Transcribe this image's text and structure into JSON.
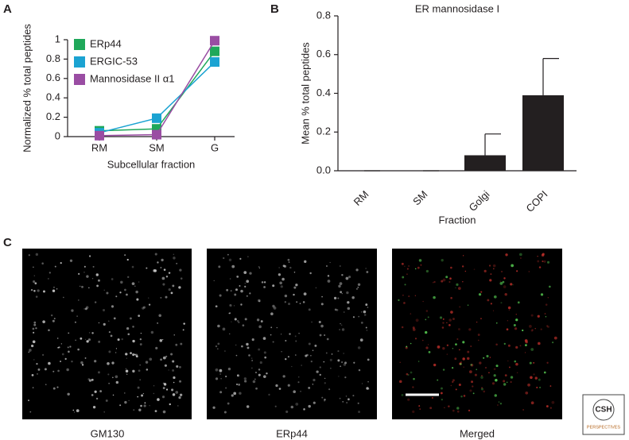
{
  "chart_data": [
    {
      "type": "line",
      "panel_label": "A",
      "xlabel": "Subcellular fraction",
      "ylabel": "Normalized % total peptides",
      "categories": [
        "RM",
        "SM",
        "G"
      ],
      "series": [
        {
          "name": "ERp44",
          "color": "#1fa85a",
          "values": [
            0.06,
            0.08,
            0.88
          ]
        },
        {
          "name": "ERGIC-53",
          "color": "#1ba3d2",
          "values": [
            0.04,
            0.19,
            0.77
          ]
        },
        {
          "name": "Mannosidase II α1",
          "color": "#9a4da3",
          "values": [
            0.01,
            0.02,
            0.99
          ]
        }
      ],
      "ylim": [
        0,
        1
      ],
      "yticks": [
        0,
        0.2,
        0.4,
        0.6,
        0.8,
        1
      ],
      "legend": "upper left",
      "grid": false
    },
    {
      "type": "bar",
      "panel_label": "B",
      "title": "ER mannosidase I",
      "xlabel": "Fraction",
      "ylabel": "Mean % total peptides",
      "categories": [
        "RM",
        "SM",
        "Golgi",
        "COPI"
      ],
      "values": [
        0,
        0,
        0.08,
        0.39
      ],
      "errors": [
        0,
        0,
        0.11,
        0.19
      ],
      "color": "#231f20",
      "ylim": [
        0,
        0.8
      ],
      "yticks": [
        {
          "value": 0,
          "label": "0.0"
        },
        {
          "value": 0.2,
          "label": "0.2"
        },
        {
          "value": 0.4,
          "label": "0.4"
        },
        {
          "value": 0.6,
          "label": "0.6"
        },
        {
          "value": 0.8,
          "label": "0.8"
        }
      ],
      "grid": false
    }
  ],
  "figure_c": {
    "panel_label": "C",
    "captions": [
      "GM130",
      "ERp44",
      "Merged"
    ]
  },
  "logo": {
    "line1": "CSH",
    "line2": "PERSPECTIVES"
  }
}
